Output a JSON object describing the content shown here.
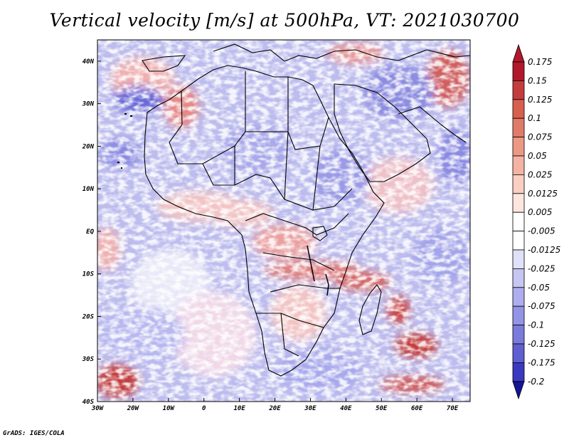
{
  "title": "Vertical velocity [m/s] at 500hPa, VT: 2021030700",
  "footer": "GrADS: IGES/COLA",
  "lon_range": [
    -30,
    75
  ],
  "lat_range": [
    -40,
    45
  ],
  "x_ticks": [
    {
      "value": -30,
      "label": "30W"
    },
    {
      "value": -20,
      "label": "20W"
    },
    {
      "value": -10,
      "label": "10W"
    },
    {
      "value": 0,
      "label": "0"
    },
    {
      "value": 10,
      "label": "10E"
    },
    {
      "value": 20,
      "label": "20E"
    },
    {
      "value": 30,
      "label": "30E"
    },
    {
      "value": 40,
      "label": "40E"
    },
    {
      "value": 50,
      "label": "50E"
    },
    {
      "value": 60,
      "label": "60E"
    },
    {
      "value": 70,
      "label": "70E"
    }
  ],
  "y_ticks": [
    {
      "value": 40,
      "label": "40N"
    },
    {
      "value": 30,
      "label": "30N"
    },
    {
      "value": 20,
      "label": "20N"
    },
    {
      "value": 10,
      "label": "10N"
    },
    {
      "value": 0,
      "label": "EQ"
    },
    {
      "value": -10,
      "label": "10S"
    },
    {
      "value": -20,
      "label": "20S"
    },
    {
      "value": -30,
      "label": "30S"
    },
    {
      "value": -40,
      "label": "40S"
    }
  ],
  "colorbar": [
    {
      "label": "0.175",
      "color": "#b2182b"
    },
    {
      "label": "0.15",
      "color": "#c43c3c"
    },
    {
      "label": "0.125",
      "color": "#d6604d"
    },
    {
      "label": "0.1",
      "color": "#e07b6a"
    },
    {
      "label": "0.075",
      "color": "#eb9985"
    },
    {
      "label": "0.05",
      "color": "#f4b4a4"
    },
    {
      "label": "0.025",
      "color": "#f9cfc3"
    },
    {
      "label": "0.0125",
      "color": "#fde6df"
    },
    {
      "label": "0.005",
      "color": "#ffffff"
    },
    {
      "label": "-0.005",
      "color": "#ffffff"
    },
    {
      "label": "-0.0125",
      "color": "#e0e0f8"
    },
    {
      "label": "-0.025",
      "color": "#c6c6f2"
    },
    {
      "label": "-0.05",
      "color": "#aeaeee"
    },
    {
      "label": "-0.075",
      "color": "#9494e6"
    },
    {
      "label": "-0.1",
      "color": "#7b7bdc"
    },
    {
      "label": "-0.125",
      "color": "#5f5fd0"
    },
    {
      "label": "-0.175",
      "color": "#3a3ac0"
    },
    {
      "label": "-0.2",
      "color": "#1c1ca8"
    }
  ],
  "colorbar_top_color": "#b2182b",
  "colorbar_bottom_color": "#14149a"
}
